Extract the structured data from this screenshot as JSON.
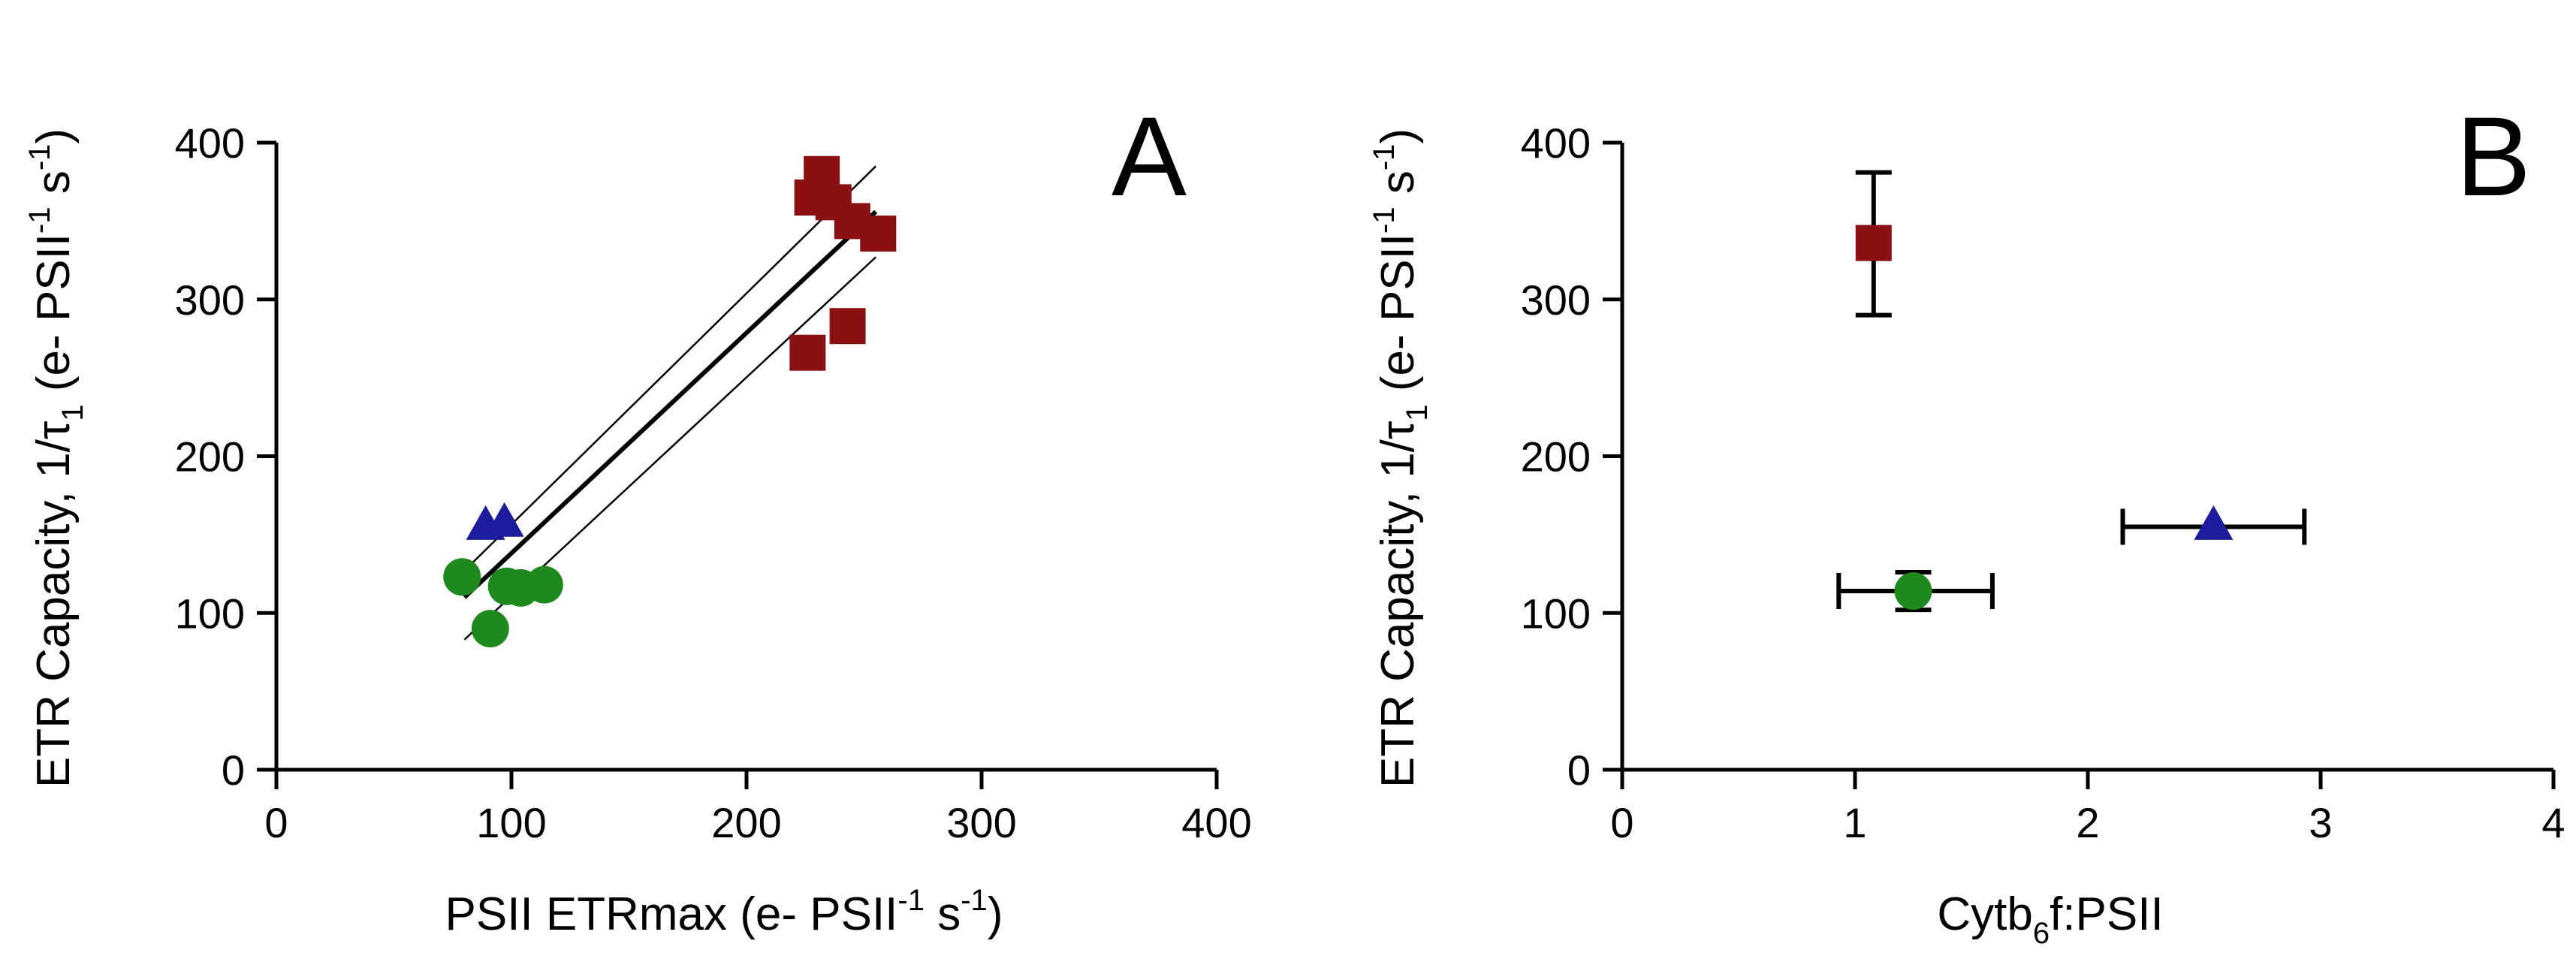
{
  "chart_data": [
    {
      "panel_label": "A",
      "type": "scatter",
      "xlabel": {
        "main": "PSII ETRmax (e- PSII",
        "sup1": "-1",
        "mid": " s",
        "sup2": "-1",
        "end": ")"
      },
      "ylabel": {
        "main": "ETR Capacity, 1/τ",
        "sub": "1",
        "mid": " (e- PSII",
        "sup1": "-1",
        "mid2": " s",
        "sup2": "-1",
        "end": ")"
      },
      "xlim": [
        0,
        400
      ],
      "ylim": [
        0,
        400
      ],
      "xticks": [
        "0",
        "100",
        "200",
        "300",
        "400"
      ],
      "yticks": [
        "0",
        "100",
        "200",
        "300",
        "400"
      ],
      "series": [
        {
          "marker": "square",
          "color": "#8b1014",
          "points": [
            [
              232,
              380
            ],
            [
              228,
              365
            ],
            [
              237,
              362
            ],
            [
              245,
              350
            ],
            [
              256,
              342
            ],
            [
              226,
              266
            ],
            [
              243,
              283
            ]
          ]
        },
        {
          "marker": "triangle",
          "color": "#1c1c9c",
          "points": [
            [
              89,
              155
            ],
            [
              97,
              157
            ]
          ]
        },
        {
          "marker": "circle",
          "color": "#1e8a1e",
          "points": [
            [
              79,
              123
            ],
            [
              98,
              117
            ],
            [
              104,
              116
            ],
            [
              114,
              118
            ],
            [
              91,
              90
            ]
          ]
        }
      ],
      "fit": {
        "x_range": [
          80,
          255
        ],
        "line": [
          [
            80,
            110
          ],
          [
            255,
            356
          ]
        ],
        "ci_upper": [
          [
            80,
            127
          ],
          [
            255,
            385
          ]
        ],
        "ci_lower": [
          [
            80,
            83
          ],
          [
            255,
            327
          ]
        ]
      }
    },
    {
      "panel_label": "B",
      "type": "scatter",
      "xlabel": {
        "main": "Cytb",
        "sub": "6",
        "end": "f:PSII"
      },
      "ylabel": {
        "main": "ETR Capacity, 1/τ",
        "sub": "1",
        "mid": " (e- PSII",
        "sup1": "-1",
        "mid2": " s",
        "sup2": "-1",
        "end": ")"
      },
      "xlim": [
        0,
        4
      ],
      "ylim": [
        0,
        400
      ],
      "xticks": [
        "0",
        "1",
        "2",
        "3",
        "4"
      ],
      "yticks": [
        "0",
        "100",
        "200",
        "300",
        "400"
      ],
      "series": [
        {
          "marker": "square",
          "color": "#8b1014",
          "points": [
            {
              "x": 1.08,
              "y": 336,
              "yerr": [
                290,
                381
              ]
            }
          ]
        },
        {
          "marker": "circle",
          "color": "#1e8a1e",
          "points": [
            {
              "x": 1.25,
              "y": 114,
              "xerr": [
                0.93,
                1.59
              ],
              "yerr": [
                102,
                126
              ]
            }
          ]
        },
        {
          "marker": "triangle",
          "color": "#1c1c9c",
          "points": [
            {
              "x": 2.54,
              "y": 155,
              "xerr": [
                2.15,
                2.93
              ]
            }
          ]
        }
      ]
    }
  ]
}
